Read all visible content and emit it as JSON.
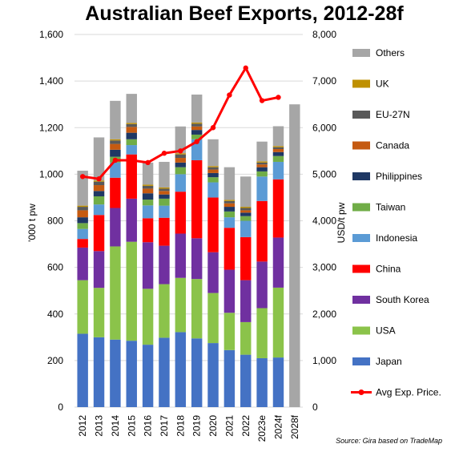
{
  "chart_data": {
    "type": "bar",
    "title": "Australian Beef Exports, 2012-28f",
    "ylabel": "'000 t pw",
    "y2label": "USD/t pw",
    "ylim": [
      0,
      1600
    ],
    "y2lim": [
      0,
      8000
    ],
    "y_ticks": [
      "0",
      "200",
      "400",
      "600",
      "800",
      "1,000",
      "1,200",
      "1,400",
      "1,600"
    ],
    "y2_ticks": [
      "0",
      "1,000",
      "2,000",
      "3,000",
      "4,000",
      "5,000",
      "6,000",
      "7,000",
      "8,000"
    ],
    "categories": [
      "2012",
      "2013",
      "2014",
      "2015",
      "2016",
      "2017",
      "2018",
      "2019",
      "2020",
      "2021",
      "2022",
      "2023e",
      "2024f",
      "2028f"
    ],
    "stacked": true,
    "series": [
      {
        "name": "Japan",
        "color": "#4472C4",
        "values": [
          315,
          300,
          290,
          285,
          268,
          298,
          322,
          295,
          275,
          245,
          225,
          210,
          213,
          null
        ]
      },
      {
        "name": "USA",
        "color": "#8BC34A",
        "values": [
          230,
          212,
          400,
          425,
          240,
          230,
          233,
          255,
          215,
          160,
          140,
          215,
          300,
          null
        ]
      },
      {
        "name": "South Korea",
        "color": "#7030A0",
        "values": [
          140,
          158,
          165,
          185,
          200,
          165,
          190,
          175,
          175,
          185,
          180,
          200,
          215,
          null
        ]
      },
      {
        "name": "China",
        "color": "#FF0000",
        "values": [
          37,
          155,
          130,
          190,
          103,
          120,
          180,
          335,
          235,
          180,
          185,
          260,
          250,
          null
        ]
      },
      {
        "name": "Indonesia",
        "color": "#5B9BD5",
        "values": [
          43,
          45,
          65,
          40,
          55,
          52,
          75,
          90,
          65,
          45,
          70,
          105,
          75,
          null
        ]
      },
      {
        "name": "Taiwan",
        "color": "#70AD47",
        "values": [
          25,
          35,
          25,
          25,
          25,
          30,
          30,
          20,
          22,
          25,
          20,
          22,
          25,
          null
        ]
      },
      {
        "name": "Philippines",
        "color": "#1F3864",
        "values": [
          25,
          23,
          30,
          28,
          27,
          18,
          20,
          20,
          18,
          20,
          15,
          18,
          17,
          null
        ]
      },
      {
        "name": "Canada",
        "color": "#C55A11",
        "values": [
          30,
          25,
          25,
          25,
          20,
          15,
          20,
          15,
          15,
          15,
          10,
          12,
          13,
          null
        ]
      },
      {
        "name": "EU-27N",
        "color": "#595959",
        "values": [
          15,
          15,
          15,
          12,
          12,
          10,
          15,
          12,
          10,
          10,
          10,
          8,
          8,
          null
        ]
      },
      {
        "name": "UK",
        "color": "#BF9000",
        "values": [
          5,
          5,
          5,
          5,
          5,
          5,
          5,
          5,
          5,
          5,
          5,
          5,
          5,
          null
        ]
      },
      {
        "name": "Others",
        "color": "#A6A6A6",
        "values": [
          150,
          185,
          165,
          125,
          95,
          110,
          115,
          120,
          115,
          140,
          130,
          85,
          85,
          1300
        ]
      }
    ],
    "line_series": {
      "name": "Avg Exp. Price.",
      "axis": "right",
      "color": "#FF0000",
      "values": [
        4950,
        4900,
        5300,
        5300,
        5250,
        5450,
        5500,
        5700,
        6000,
        6700,
        7280,
        6580,
        6650,
        null
      ]
    },
    "legend_position": "right",
    "source": "Source: Gira based on TradeMap"
  }
}
